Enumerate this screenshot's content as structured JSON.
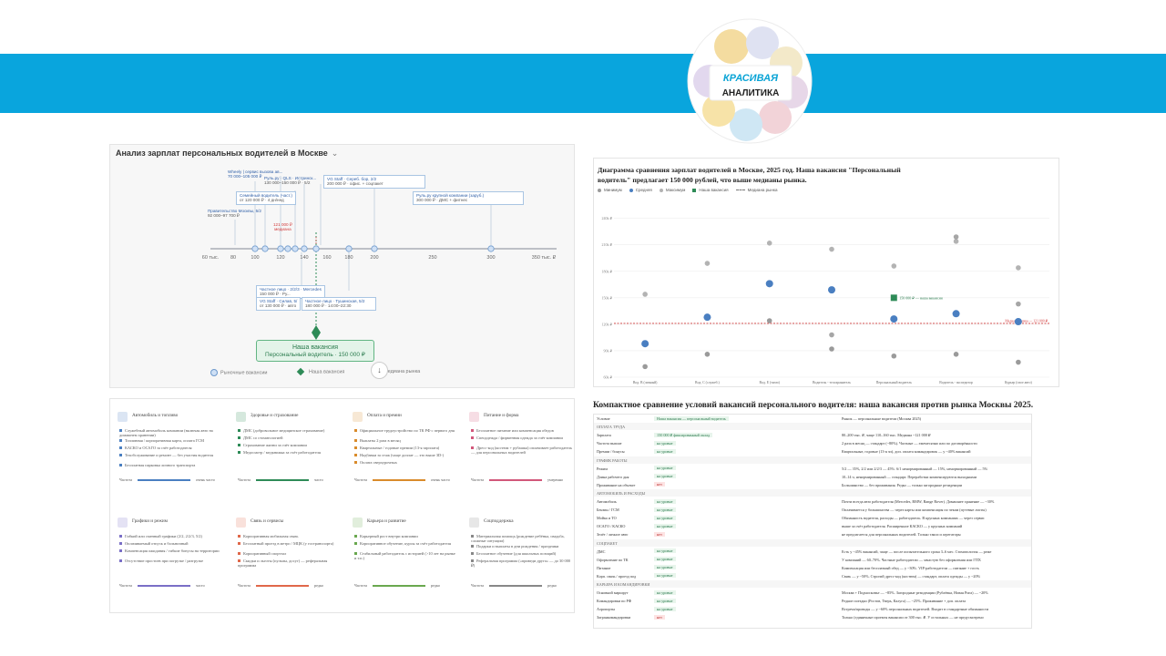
{
  "colors": {
    "band": "#09a5dd",
    "accent_green": "#2e8b57",
    "accent_blue": "#4a7fc1",
    "median_red": "#d23c3c"
  },
  "logo": {
    "line1": "КРАСИВАЯ",
    "line2": "АНАЛИТИКА"
  },
  "panel1": {
    "title": "Анализ зарплат персональных водителей в Москве",
    "chevron_icon": "chevron-down-icon",
    "axis_ticks": [
      "60 тыс.",
      "80",
      "100",
      "120",
      "140",
      "160",
      "180",
      "200",
      "250",
      "300",
      "350 тыс. ₽"
    ],
    "callouts": [
      {
        "head": "Wheely | сервис вызова ав...",
        "body": "70 000–105 000 ₽"
      },
      {
        "head": "Руль.ру · QLS · Истринск...",
        "body": "130 000–150 000 ₽ · 5/2"
      },
      {
        "head": "VG Staff · Сереб. бор, 2/2",
        "body": "200 000 ₽ · офис. + соцпакет"
      },
      {
        "head": "Семейный водитель (част.)",
        "body": "от 120 000 ₽ · 4 дн/нед"
      },
      {
        "head": "Правительство Москвы, 5/2",
        "body": "92 000–97 700 ₽"
      },
      {
        "head": "Руль.ру крупной компании (заруб.)",
        "body": "300 000 ₽ · ДМС + фитнес"
      },
      {
        "head": "Частное лицо · 2/2/3 · Mercedes",
        "body": "150 000 ₽ · Ру..."
      },
      {
        "head": "VG Staff · Силав, 5/",
        "body": "от 130 000 ₽ · авто"
      },
      {
        "head": "Частное лицо · Тушинская, 5/2",
        "body": "180 000 ₽ · 14:00–22:30"
      }
    ],
    "median": {
      "value": "121 000 ₽",
      "label": "медиана"
    },
    "our_vacancy": {
      "title": "Наша вакансия",
      "subtitle": "Персональный водитель · 150 000 ₽"
    },
    "legend": {
      "market": "Рыночные вакансии",
      "ours": "Наша вакансия",
      "median": "Медиана рынка"
    },
    "download_icon": "arrow-down-icon"
  },
  "panel2": {
    "title": "Диаграмма сравнения зарплат водителей в Москве, 2025 год. Наша вакансия \"Персональный водитель\" предлагает 150 000 рублей, что выше медианы рынка.",
    "legend": [
      "Минимум",
      "Средняя",
      "Максимум",
      "Наша вакансия",
      "Медиана рынка"
    ],
    "median_label": "Медиана рынка — 121 000 ₽",
    "ours_label": "150 000 ₽ — наша вакансия"
  },
  "chart_data": {
    "type": "scatter",
    "title": "Диаграмма сравнения зарплат водителей в Москве, 2025 год. Наша вакансия \"Персональный водитель\" предлагает 150 000 рублей, что выше медианы рынка.",
    "categories": [
      "Вод. В (личный)",
      "Вод. С (служеб.)",
      "Вод. Е (тягач)",
      "Водитель - телохранитель",
      "Персональный водитель",
      "Водитель - экспедитор",
      "Курьер (свое авто)"
    ],
    "yticks": [
      "60k ₽",
      "90k ₽",
      "120k ₽",
      "150k ₽",
      "180k ₽",
      "210k ₽",
      "240k ₽"
    ],
    "ylim": [
      60000,
      250000
    ],
    "series": [
      {
        "name": "Минимум",
        "values": [
          72000,
          86000,
          124000,
          92000,
          84000,
          86000,
          77000
        ]
      },
      {
        "name": "Средняя",
        "values": [
          98000,
          128000,
          166000,
          159000,
          126000,
          132000,
          123000
        ]
      },
      {
        "name": "Максимум",
        "values": [
          154000,
          189000,
          212000,
          205000,
          186000,
          214000,
          184000
        ]
      }
    ],
    "extra_points": [
      {
        "category": "Водитель - телохранитель",
        "value": 108000
      },
      {
        "category": "Водитель - экспедитор",
        "value": 219000
      },
      {
        "category": "Курьер (свое авто)",
        "value": 143000
      }
    ],
    "our_vacancy": {
      "category": "Персональный водитель",
      "value": 150000
    },
    "median": 121000,
    "grid": true,
    "legend_position": "top-left"
  },
  "panel3": {
    "cards": [
      {
        "title": "Автомобиль и топливо",
        "color": "#4a7fc1",
        "items": [
          "Служебный автомобиль компании (включая авто на домашнем хранении)",
          "Топливная / корпоративная карта, оплата ГСМ",
          "КАСКО и ОСАГО за счёт работодателя",
          "Техобслуживание и ремонт — без участия водителя",
          "Бесплатная парковка личного транспорта"
        ],
        "foot": "Частота",
        "foot2": "очень часто"
      },
      {
        "title": "Здоровье и страхование",
        "color": "#2e8b57",
        "items": [
          "ДМС (добровольное медицинское страхование)",
          "ДМС со стоматологией",
          "Страхование жизни за счёт компании",
          "Медосмотр / медкнижка за счёт работодателя"
        ],
        "foot": "Частота",
        "foot2": "часто"
      },
      {
        "title": "Оплата и премии",
        "color": "#d98b2b",
        "items": [
          "Официальное трудоустройство по ТК РФ с первого дня",
          "Выплаты 2 раза в месяц",
          "Квартальные / годовые премии (13-я зарплата)",
          "Надбавки за стаж (чаще доплат — это выше 3D-)",
          "Оплата сверхурочных"
        ],
        "foot": "Частота",
        "foot2": "очень часто"
      },
      {
        "title": "Питание и форма",
        "color": "#d2577a",
        "items": [
          "Бесплатное питание или компенсация обедов",
          "Спецодежда / фирменная одежда за счёт компании",
          "Дресс-код (костюм + рубашка) оплачивает работодатель — для персональных водителей"
        ],
        "foot": "Частота",
        "foot2": "умеренно"
      },
      {
        "title": "Графики и режим",
        "color": "#7a6fc6",
        "items": [
          "Гибкий или сменный графики (2/2, 2/2/3, 5/2)",
          "Оплачиваемый отпуск и больничный",
          "Компенсация ожидания / гибкие бонусы на территории",
          "Отсутствие простоев при погрузке / разгрузке"
        ],
        "foot": "Частота",
        "foot2": "часто"
      },
      {
        "title": "Связь и сервисы",
        "color": "#e0684a",
        "items": [
          "Корпоративная мобильная связь",
          "Бесплатный проезд в метро / МЦК (у гостранспорта)",
          "Корпоративный спортзал",
          "Скидки и льготы (пульпы, досуг) — реферальная программа"
        ],
        "foot": "Частота",
        "foot2": "редко"
      },
      {
        "title": "Карьера и развитие",
        "color": "#6aa84f",
        "items": [
          "Карьерный рост внутри компании",
          "Корпоративное обучение, курсы за счёт работодателя",
          "Стабильный работодатель с историей (>10 лет на рынке и т.п.)"
        ],
        "foot": "Частота",
        "foot2": "редко"
      },
      {
        "title": "Соцподдержка",
        "color": "#888888",
        "items": [
          "Материальная помощь (рождение ребёнка, свадьба, сложные ситуации)",
          "Подарки и выплаты в дни рождения / праздники",
          "Бесплатное обучение (для школьных позиций)",
          "Реферальная программа («приведи друга» — до 30 000 ₽)"
        ],
        "foot": "Частота",
        "foot2": "редко"
      }
    ]
  },
  "panel4": {
    "title": "Компактное сравнение условий вакансий персонального водителя: наша вакансия против рынка Москвы 2025.",
    "rows": [
      {
        "c1": "Условие",
        "c2": "Наша вакансия — персональный водитель",
        "c3": "Рынок — персональные водители (Москва 2025)",
        "sec": false
      },
      {
        "c1": "ОПЛАТА ТРУДА",
        "c2": "",
        "c3": "",
        "sec": true
      },
      {
        "c1": "Зарплата",
        "c2": "150 000 ₽ фиксированный оклад",
        "c3": "80–200 тыс. ₽, чаще 110–160 тыс. Медиана ~121 000 ₽",
        "sec": false
      },
      {
        "c1": "Частота выплат",
        "c2": "на уровне",
        "c3": "2 раза в месяц — стандарт (~80%). Частные — ежемесячно или по договорённости",
        "sec": false
      },
      {
        "c1": "Премии / бонусы",
        "c2": "на уровне",
        "c3": "Квартальные, годовые (13-я зп), доп. оплата командировок — у ~40% вакансий",
        "sec": false
      },
      {
        "c1": "ГРАФИК РАБОТЫ",
        "c2": "",
        "c3": "",
        "sec": true
      },
      {
        "c1": "Режим",
        "c2": "на уровне",
        "c3": "5/2 — 35%, 2/2 или 2/2/3 — 45%. 6/1 ненормированный — 15%, ненормированный — 5%",
        "sec": false
      },
      {
        "c1": "Длина рабочего дня",
        "c2": "на уровне",
        "c3": "10–14 ч, ненормированный — стандарт. Переработки компенсируются выходными",
        "sec": false
      },
      {
        "c1": "Проживание на объекте",
        "c2": "нет",
        "c3": "Большинство — без проживания. Редко — только загородные резиденции",
        "sec": false
      },
      {
        "c1": "АВТОМОБИЛЬ И РАСХОДЫ",
        "c2": "",
        "c3": "",
        "sec": true
      },
      {
        "c1": "Автомобиль",
        "c2": "на уровне",
        "c3": "Почти всегда авто работодателя (Mercedes, BMW, Range Rover). Домашнее хранение — ~30%",
        "sec": false
      },
      {
        "c1": "Бензин / ГСМ",
        "c2": "на уровне",
        "c3": "Оплачивается у большинства — через карты или компенсация по чекам (путевые листы)",
        "sec": false
      },
      {
        "c1": "Мойка и ТО",
        "c2": "на уровне",
        "c3": "Обязанность водителя, расходы — работодатель. В крупных компаниях — через сервис",
        "sec": false
      },
      {
        "c1": "ОСАГО / КАСКО",
        "c2": "на уровне",
        "c3": "выше за счёт работодателя. Расширенное КАСКО — у крупных компаний",
        "sec": false
      },
      {
        "c1": "Зелёт / личное авто",
        "c2": "нет",
        "c3": "не предлагается для персональных водителей. Только такси и агрегаторы",
        "sec": false
      },
      {
        "c1": "СОЦПАКЕТ",
        "c2": "",
        "c3": "",
        "sec": true
      },
      {
        "c1": "ДМС",
        "c2": "на уровне",
        "c3": "Есть у ~45% вакансий, чаще — после испытательного срока 3–6 мес. Стоматология — реже",
        "sec": false
      },
      {
        "c1": "Оформление по ТК",
        "c2": "на уровне",
        "c3": "У компаний — 60–70%. Частные работодатели — зачастую без оформления или ГПХ",
        "sec": false
      },
      {
        "c1": "Питание",
        "c2": "на уровне",
        "c3": "Компенсация или бесплатный обед — у ~30%. VIP-работодатели — питание + гость",
        "sec": false
      },
      {
        "c1": "Корп. связь / проезд под",
        "c2": "на уровне",
        "c3": "Связь — у ~50%. Строгий дресс-код (костюм) — стандарт, оплата одежды — у ~20%",
        "sec": false
      },
      {
        "c1": "КАРЬЕРА И КОМАНДИРОВКИ",
        "c2": "",
        "c3": "",
        "sec": true
      },
      {
        "c1": "Основной маршрут",
        "c2": "на уровне",
        "c3": "Москва + Подмосковье — ~85%. Загородные резиденции (Рублёвка, Новая Рига) — ~20%",
        "sec": false
      },
      {
        "c1": "Командировки по РФ",
        "c2": "на уровне",
        "c3": "Редкие поездки (Ростов, Тверь, Калуга) — ~25%. Проживание + доп. оплата",
        "sec": false
      },
      {
        "c1": "Аэропорты",
        "c2": "на уровне",
        "c3": "Встречи/проводы — у ~60% персональных водителей. Входит в стандартные обязанности",
        "sec": false
      },
      {
        "c1": "Загранкомандировки",
        "c2": "нет",
        "c3": "Только (единичные проекты вакансии от 300 тыс. ₽. У остальных — не предусмотрено",
        "sec": false
      }
    ]
  }
}
